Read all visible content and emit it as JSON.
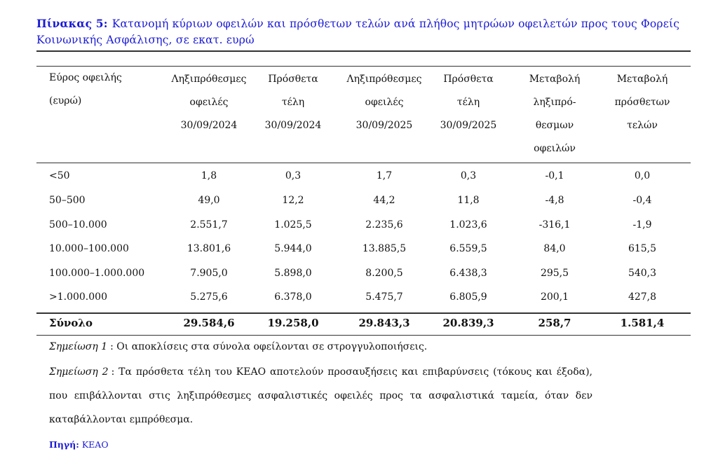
{
  "caption": {
    "label": "Πίνακας 5:",
    "text": "Κατανομή κύριων οφειλών και πρόσθετων τελών ανά πλήθος μητρώων οφειλετών προς τους Φορείς Κοινωνικής Ασφάλισης, σε εκατ. ευρώ"
  },
  "table": {
    "headers": [
      [
        "Εύρος οφειλής",
        "(ευρώ)"
      ],
      [
        "Ληξιπρόθεσμες",
        "οφειλές",
        "30/09/2024"
      ],
      [
        "Πρόσθετα",
        "τέλη",
        "30/09/2024"
      ],
      [
        "Ληξιπρόθεσμες",
        "οφειλές",
        "30/09/2025"
      ],
      [
        "Πρόσθετα",
        "τέλη",
        "30/09/2025"
      ],
      [
        "Μεταβολή",
        "ληξιπρό-",
        "θεσμων",
        "οφειλών"
      ],
      [
        "Μεταβολή",
        "πρόσθετων",
        "τελών"
      ]
    ],
    "rows": [
      [
        "<50",
        "1,8",
        "0,3",
        "1,7",
        "0,3",
        "-0,1",
        "0,0"
      ],
      [
        "50–500",
        "49,0",
        "12,2",
        "44,2",
        "11,8",
        "-4,8",
        "-0,4"
      ],
      [
        "500–10.000",
        "2.551,7",
        "1.025,5",
        "2.235,6",
        "1.023,6",
        "-316,1",
        "-1,9"
      ],
      [
        "10.000–100.000",
        "13.801,6",
        "5.944,0",
        "13.885,5",
        "6.559,5",
        "84,0",
        "615,5"
      ],
      [
        "100.000–1.000.000",
        "7.905,0",
        "5.898,0",
        "8.200,5",
        "6.438,3",
        "295,5",
        "540,3"
      ],
      [
        ">1.000.000",
        "5.275,6",
        "6.378,0",
        "5.475,7",
        "6.805,9",
        "200,1",
        "427,8"
      ]
    ],
    "total": [
      "Σύνολο",
      "29.584,6",
      "19.258,0",
      "29.843,3",
      "20.839,3",
      "258,7",
      "1.581,4"
    ]
  },
  "notes": [
    {
      "label": "Σημείωση 1",
      "text": ": Οι αποκλίσεις στα σύνολα οφείλονται σε στρογγυλοποιήσεις."
    },
    {
      "label": "Σημείωση 2",
      "text": ": Τα πρόσθετα τέλη του ΚΕΑΟ αποτελούν προσαυξήσεις και επιβαρύνσεις (τόκους και έξοδα), που επιβάλλονται στις ληξιπρόθεσμες ασφαλιστικές οφειλές προς τα ασφαλιστικά ταμεία, όταν δεν καταβάλλονται εμπρόθεσμα."
    }
  ],
  "source": {
    "label": "Πηγή:",
    "text": "ΚΕΑΟ"
  }
}
